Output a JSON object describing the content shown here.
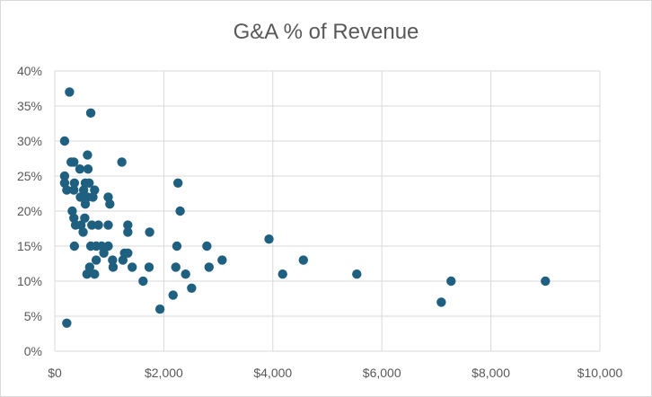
{
  "chart_data": {
    "type": "scatter",
    "title": "G&A % of Revenue",
    "xlabel": "",
    "ylabel": "",
    "xlim": [
      0,
      10000
    ],
    "ylim": [
      0,
      0.4
    ],
    "x_ticks": [
      0,
      2000,
      4000,
      6000,
      8000,
      10000
    ],
    "x_tick_labels": [
      "$0",
      "$2,000",
      "$4,000",
      "$6,000",
      "$8,000",
      "$10,000"
    ],
    "y_ticks": [
      0,
      0.05,
      0.1,
      0.15,
      0.2,
      0.25,
      0.3,
      0.35,
      0.4
    ],
    "y_tick_labels": [
      "0%",
      "5%",
      "10%",
      "15%",
      "20%",
      "25%",
      "30%",
      "35%",
      "40%"
    ],
    "grid": true,
    "legend": "none",
    "marker_color": "#1f5f7f",
    "series": [
      {
        "points": [
          [
            270,
            0.37
          ],
          [
            220,
            0.04
          ],
          [
            660,
            0.34
          ],
          [
            180,
            0.3
          ],
          [
            600,
            0.28
          ],
          [
            1230,
            0.27
          ],
          [
            300,
            0.27
          ],
          [
            350,
            0.27
          ],
          [
            460,
            0.26
          ],
          [
            610,
            0.26
          ],
          [
            180,
            0.25
          ],
          [
            180,
            0.24
          ],
          [
            360,
            0.24
          ],
          [
            560,
            0.24
          ],
          [
            630,
            0.24
          ],
          [
            2260,
            0.24
          ],
          [
            220,
            0.23
          ],
          [
            350,
            0.23
          ],
          [
            530,
            0.23
          ],
          [
            730,
            0.23
          ],
          [
            470,
            0.22
          ],
          [
            600,
            0.22
          ],
          [
            700,
            0.22
          ],
          [
            980,
            0.22
          ],
          [
            560,
            0.21
          ],
          [
            1010,
            0.21
          ],
          [
            320,
            0.2
          ],
          [
            2300,
            0.2
          ],
          [
            350,
            0.19
          ],
          [
            550,
            0.19
          ],
          [
            380,
            0.18
          ],
          [
            480,
            0.18
          ],
          [
            680,
            0.18
          ],
          [
            800,
            0.18
          ],
          [
            980,
            0.18
          ],
          [
            1340,
            0.18
          ],
          [
            520,
            0.17
          ],
          [
            1340,
            0.17
          ],
          [
            1740,
            0.17
          ],
          [
            360,
            0.15
          ],
          [
            660,
            0.15
          ],
          [
            760,
            0.15
          ],
          [
            860,
            0.15
          ],
          [
            980,
            0.15
          ],
          [
            2240,
            0.15
          ],
          [
            2790,
            0.15
          ],
          [
            900,
            0.14
          ],
          [
            1280,
            0.14
          ],
          [
            1340,
            0.14
          ],
          [
            760,
            0.13
          ],
          [
            1060,
            0.13
          ],
          [
            1250,
            0.13
          ],
          [
            3070,
            0.13
          ],
          [
            4560,
            0.13
          ],
          [
            640,
            0.12
          ],
          [
            1070,
            0.12
          ],
          [
            1420,
            0.12
          ],
          [
            1730,
            0.12
          ],
          [
            2220,
            0.12
          ],
          [
            2830,
            0.12
          ],
          [
            590,
            0.11
          ],
          [
            730,
            0.11
          ],
          [
            2400,
            0.11
          ],
          [
            4180,
            0.11
          ],
          [
            5540,
            0.11
          ],
          [
            1620,
            0.1
          ],
          [
            7270,
            0.1
          ],
          [
            9000,
            0.1
          ],
          [
            2510,
            0.09
          ],
          [
            2170,
            0.08
          ],
          [
            7090,
            0.07
          ],
          [
            1930,
            0.06
          ],
          [
            3930,
            0.16
          ]
        ]
      }
    ]
  }
}
